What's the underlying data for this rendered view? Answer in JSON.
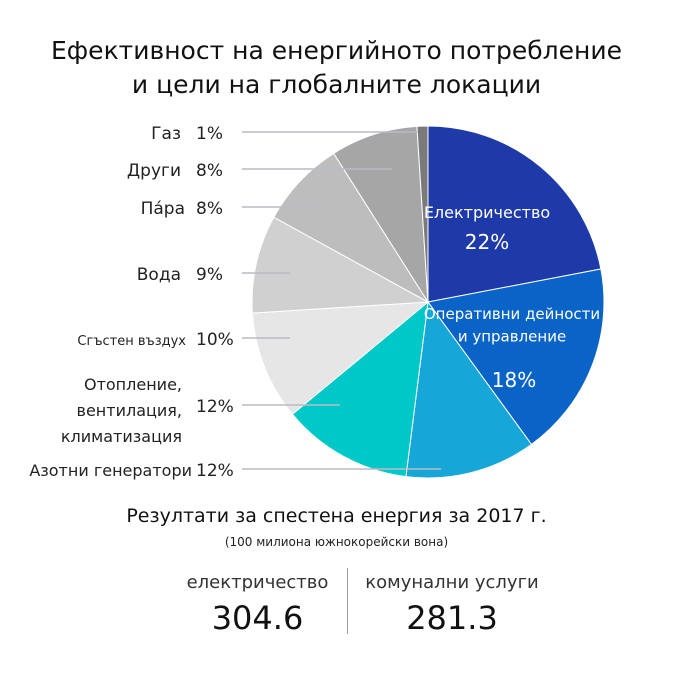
{
  "title": {
    "line1": "Ефективност на енергийното потребление",
    "line2": "и цели на глобалните локации"
  },
  "chart_data": {
    "type": "pie",
    "slices": [
      {
        "label": "Електричество",
        "value": 22,
        "pct": "22%",
        "color": "#1e3aa8"
      },
      {
        "label": "Оперативни дейности и управление",
        "label_lines": [
          "Оперативни дейности",
          "и управление"
        ],
        "value": 18,
        "pct": "18%",
        "color": "#0a64c8"
      },
      {
        "label": "Азотни генератори",
        "value": 12,
        "pct": "12%",
        "color": "#16a6d8"
      },
      {
        "label": "Отопление, вентилация, климатизация",
        "label_lines": [
          "Отопление,",
          "вентилация,",
          "климатизация"
        ],
        "value": 12,
        "pct": "12%",
        "color": "#00c8c8"
      },
      {
        "label": "Сгъстен въздух",
        "value": 10,
        "pct": "10%",
        "color": "#e6e6e6"
      },
      {
        "label": "Вода",
        "value": 9,
        "pct": "9%",
        "color": "#d0d0d0"
      },
      {
        "label": "Па́ра",
        "value": 8,
        "pct": "8%",
        "color": "#bdbdbd"
      },
      {
        "label": "Други",
        "value": 8,
        "pct": "8%",
        "color": "#a6a6a6"
      },
      {
        "label": "Газ",
        "value": 1,
        "pct": "1%",
        "color": "#7a7a7a"
      }
    ]
  },
  "results": {
    "title": "Резултати за спестена енергия за 2017 г.",
    "subtitle": "(100 милиона южнокорейски вона)",
    "items": [
      {
        "label": "електричество",
        "value": "304.6"
      },
      {
        "label": "комунални услуги",
        "value": "281.3"
      }
    ]
  }
}
